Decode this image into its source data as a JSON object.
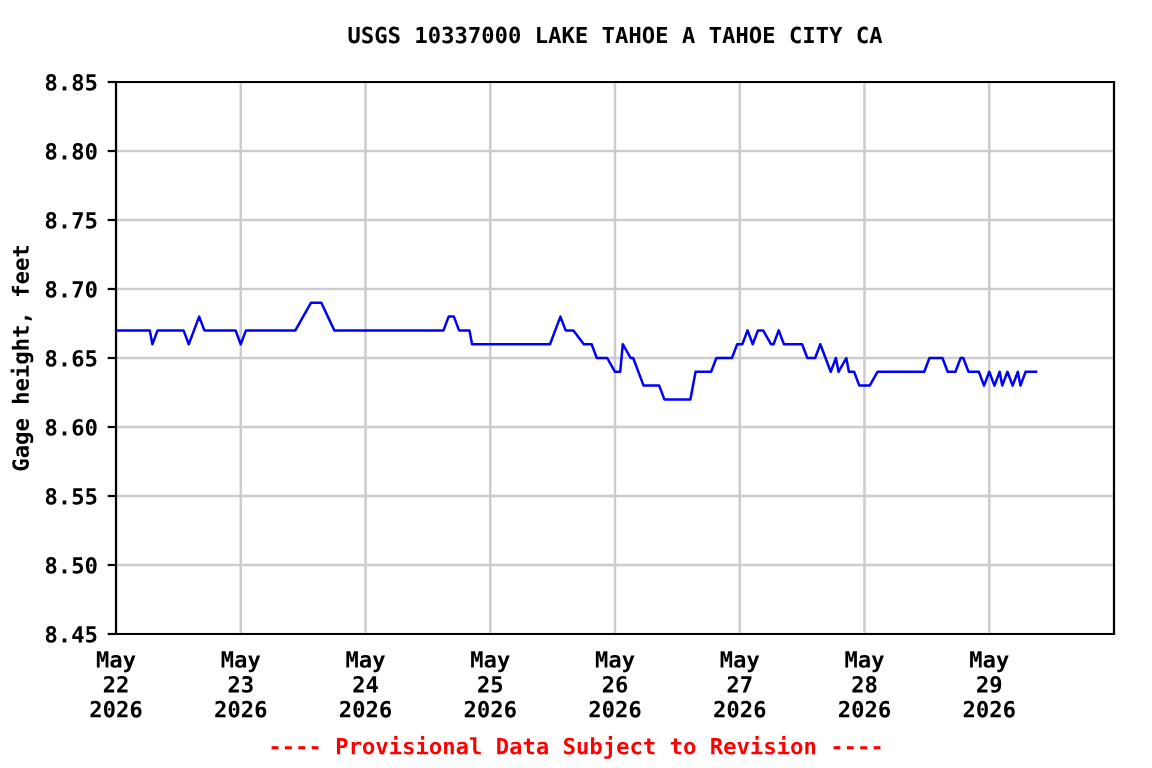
{
  "chart_data": {
    "type": "line",
    "title": "USGS 10337000 LAKE TAHOE A TAHOE CITY CA",
    "ylabel": "Gage height, feet",
    "annotations": [
      "---- Provisional Data Subject to Revision ----"
    ],
    "series": [
      {
        "color": "#0000ff",
        "x": [
          "2026-05-22T00:00",
          "2026-05-22T06:30",
          "2026-05-22T07:00",
          "2026-05-22T08:00",
          "2026-05-22T13:00",
          "2026-05-22T14:00",
          "2026-05-22T16:00",
          "2026-05-22T17:00",
          "2026-05-22T23:00",
          "2026-05-23T00:00",
          "2026-05-23T01:00",
          "2026-05-23T10:30",
          "2026-05-23T12:00",
          "2026-05-23T13:30",
          "2026-05-23T15:30",
          "2026-05-23T18:00",
          "2026-05-24T15:00",
          "2026-05-24T16:00",
          "2026-05-24T17:00",
          "2026-05-24T18:00",
          "2026-05-24T20:00",
          "2026-05-24T20:30",
          "2026-05-25T11:30",
          "2026-05-25T13:30",
          "2026-05-25T14:30",
          "2026-05-25T16:00",
          "2026-05-25T18:00",
          "2026-05-25T19:30",
          "2026-05-25T20:30",
          "2026-05-25T22:30",
          "2026-05-26T00:00",
          "2026-05-26T01:00",
          "2026-05-26T01:30",
          "2026-05-26T03:00",
          "2026-05-26T03:30",
          "2026-05-26T05:30",
          "2026-05-26T08:30",
          "2026-05-26T09:30",
          "2026-05-26T14:30",
          "2026-05-26T15:30",
          "2026-05-26T18:30",
          "2026-05-26T19:30",
          "2026-05-26T22:30",
          "2026-05-26T23:30",
          "2026-05-27T00:30",
          "2026-05-27T01:30",
          "2026-05-27T02:30",
          "2026-05-27T03:30",
          "2026-05-27T04:30",
          "2026-05-27T06:00",
          "2026-05-27T06:30",
          "2026-05-27T07:30",
          "2026-05-27T08:30",
          "2026-05-27T12:00",
          "2026-05-27T13:00",
          "2026-05-27T14:30",
          "2026-05-27T15:30",
          "2026-05-27T16:30",
          "2026-05-27T17:30",
          "2026-05-27T18:30",
          "2026-05-27T19:00",
          "2026-05-27T20:30",
          "2026-05-27T21:00",
          "2026-05-27T22:00",
          "2026-05-27T23:00",
          "2026-05-28T01:00",
          "2026-05-28T02:30",
          "2026-05-28T11:30",
          "2026-05-28T12:30",
          "2026-05-28T15:00",
          "2026-05-28T16:00",
          "2026-05-28T17:30",
          "2026-05-28T18:30",
          "2026-05-28T19:00",
          "2026-05-28T20:00",
          "2026-05-28T22:00",
          "2026-05-28T23:00",
          "2026-05-29T00:00",
          "2026-05-29T01:00",
          "2026-05-29T02:00",
          "2026-05-29T02:30",
          "2026-05-29T03:30",
          "2026-05-29T04:30",
          "2026-05-29T05:30",
          "2026-05-29T06:00",
          "2026-05-29T07:00",
          "2026-05-29T09:00"
        ],
        "values": [
          8.67,
          8.67,
          8.66,
          8.67,
          8.67,
          8.66,
          8.68,
          8.67,
          8.67,
          8.66,
          8.67,
          8.67,
          8.68,
          8.69,
          8.69,
          8.67,
          8.67,
          8.68,
          8.68,
          8.67,
          8.67,
          8.66,
          8.66,
          8.68,
          8.67,
          8.67,
          8.66,
          8.66,
          8.65,
          8.65,
          8.64,
          8.64,
          8.66,
          8.65,
          8.65,
          8.63,
          8.63,
          8.62,
          8.62,
          8.64,
          8.64,
          8.65,
          8.65,
          8.66,
          8.66,
          8.67,
          8.66,
          8.67,
          8.67,
          8.66,
          8.66,
          8.67,
          8.66,
          8.66,
          8.65,
          8.65,
          8.66,
          8.65,
          8.64,
          8.65,
          8.64,
          8.65,
          8.64,
          8.64,
          8.63,
          8.63,
          8.64,
          8.64,
          8.65,
          8.65,
          8.64,
          8.64,
          8.65,
          8.65,
          8.64,
          8.64,
          8.63,
          8.64,
          8.63,
          8.64,
          8.63,
          8.64,
          8.63,
          8.64,
          8.63,
          8.64,
          8.64
        ]
      }
    ],
    "xlim": [
      "2026-05-22T00:00",
      "2026-05-30T00:00"
    ],
    "xticks": [
      {
        "value": "2026-05-22T00:00",
        "label": "May\n22\n2026"
      },
      {
        "value": "2026-05-23T00:00",
        "label": "May\n23\n2026"
      },
      {
        "value": "2026-05-24T00:00",
        "label": "May\n24\n2026"
      },
      {
        "value": "2026-05-25T00:00",
        "label": "May\n25\n2026"
      },
      {
        "value": "2026-05-26T00:00",
        "label": "May\n26\n2026"
      },
      {
        "value": "2026-05-27T00:00",
        "label": "May\n27\n2026"
      },
      {
        "value": "2026-05-28T00:00",
        "label": "May\n28\n2026"
      },
      {
        "value": "2026-05-29T00:00",
        "label": "May\n29\n2026"
      }
    ],
    "ylim": [
      8.45,
      8.85
    ],
    "yticks": [
      8.45,
      {
        "value": 8.5,
        "label": "8.50"
      },
      8.55,
      {
        "value": 8.6,
        "label": "8.60"
      },
      8.65,
      {
        "value": 8.7,
        "label": "8.70"
      },
      8.75,
      {
        "value": 8.8,
        "label": "8.80"
      },
      8.85
    ],
    "grid": true,
    "line_style": "solid"
  }
}
